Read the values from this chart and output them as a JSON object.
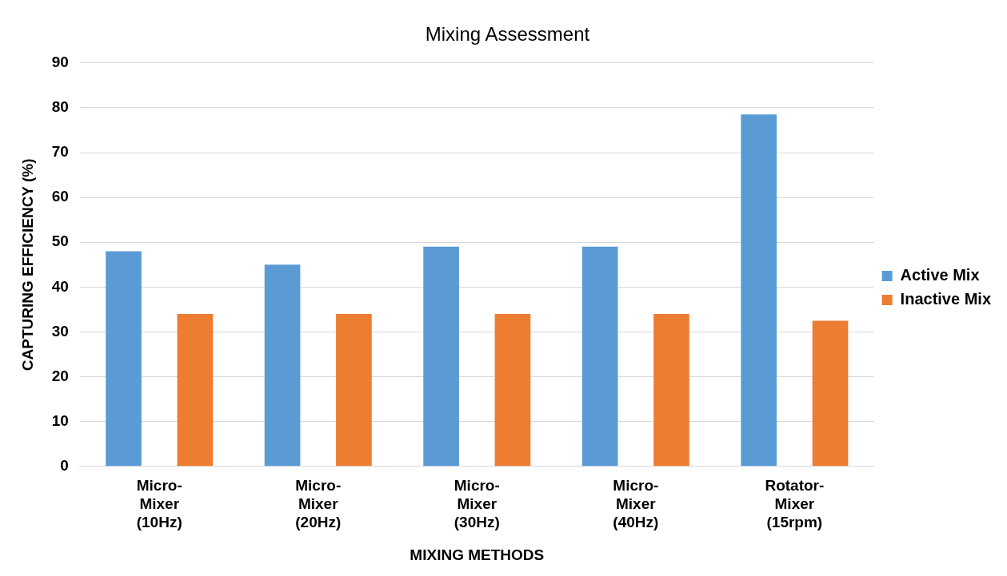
{
  "chart_data": {
    "type": "bar",
    "title": "Mixing Assessment",
    "xlabel": "MIXING METHODS",
    "ylabel": "CAPTURING EFFICIENCY (%)",
    "categories": [
      "Micro-\nMixer\n(10Hz)",
      "Micro-\nMixer\n(20Hz)",
      "Micro-\nMixer\n(30Hz)",
      "Micro-\nMixer\n(40Hz)",
      "Rotator-\nMixer\n(15rpm)"
    ],
    "series": [
      {
        "name": "Active Mix",
        "color": "#5b9bd5",
        "values": [
          48,
          45,
          49,
          49,
          78.5
        ]
      },
      {
        "name": "Inactive Mix",
        "color": "#ed7d31",
        "values": [
          34,
          34,
          34,
          34,
          32.5
        ]
      }
    ],
    "ylim": [
      0,
      90
    ],
    "yticks": [
      0,
      10,
      20,
      30,
      40,
      50,
      60,
      70,
      80,
      90
    ],
    "grid": "y",
    "legend": "right"
  }
}
